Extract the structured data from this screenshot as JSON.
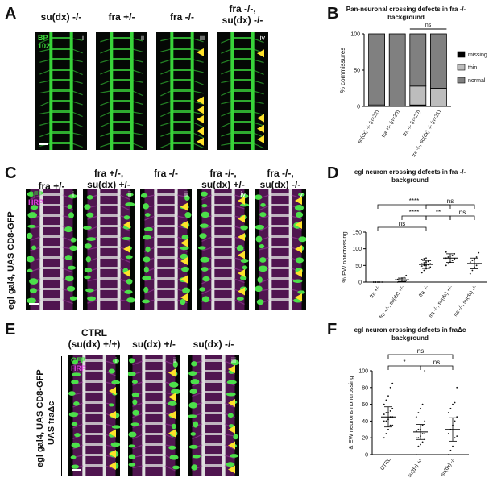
{
  "panels": {
    "A": {
      "label": "A",
      "columns": [
        "su(dx) -/-",
        "fra +/-",
        "fra -/-",
        "fra -/-,\nsu(dx) -/-"
      ],
      "romans": [
        "i",
        "ii",
        "iii",
        "iv"
      ],
      "stain": [
        "BP",
        "102"
      ]
    },
    "B": {
      "label": "B"
    },
    "C": {
      "label": "C",
      "columns": [
        "fra +/-",
        "fra +/-,\nsu(dx) +/-",
        "fra -/-",
        "fra -/-,\nsu(dx) +/-",
        "fra -/-,\nsu(dx) -/-"
      ],
      "romans": [
        "i",
        "ii",
        "iii",
        "iv",
        "v"
      ],
      "stain": [
        "GFP",
        "HRP"
      ],
      "side_label": "egl gal4, UAS CD8-GFP"
    },
    "D": {
      "label": "D"
    },
    "E": {
      "label": "E",
      "columns": [
        "CTRL\n(su(dx) +/+)",
        "su(dx) +/-",
        "su(dx) -/-"
      ],
      "romans": [
        "i",
        "ii",
        "iii"
      ],
      "stain": [
        "GFP",
        "HRP"
      ],
      "side_label_1": "egl gal4, UAS CD8-GFP",
      "side_label_2": "UAS fraΔc"
    },
    "F": {
      "label": "F"
    }
  },
  "chart_data": [
    {
      "id": "B",
      "type": "bar",
      "title": "Pan-neuronal crossing defects in fra -/- background",
      "ylabel": "% commissures",
      "ylim": [
        0,
        100
      ],
      "yticks": [
        0,
        50,
        100
      ],
      "categories": [
        "su(dx) -/- (n=22)",
        "fra +/- (n=20)",
        "fra -/- (n=20)",
        "fra -/-, su(dx) -/- (n=21)"
      ],
      "stacked": true,
      "series": [
        {
          "name": "missing",
          "color": "#000000",
          "values": [
            0,
            0,
            2,
            0
          ]
        },
        {
          "name": "thin",
          "color": "#bdbdbd",
          "values": [
            2,
            0,
            26,
            25
          ]
        },
        {
          "name": "normal",
          "color": "#808080",
          "values": [
            98,
            100,
            72,
            75
          ]
        }
      ],
      "significance": [
        {
          "from": 2,
          "to": 3,
          "label": "ns"
        }
      ],
      "legend_position": "right"
    },
    {
      "id": "D",
      "type": "scatter",
      "title": "egl neuron crossing defects in fra -/- background",
      "ylabel": "% EW noncrossing",
      "ylim": [
        0,
        150
      ],
      "yticks": [
        0,
        50,
        100,
        150
      ],
      "categories": [
        "fra +/-",
        "fra +/-, su(dx) +/-",
        "fra -/-",
        "fra -/-, su(dx) +/-",
        "fra -/-, su(dx) -/-"
      ],
      "mean": [
        0,
        7,
        53,
        72,
        56
      ],
      "sd": [
        0,
        5,
        12,
        13,
        16
      ],
      "points": [
        [
          0,
          0,
          0,
          0,
          0,
          0,
          0,
          0
        ],
        [
          0,
          0,
          2,
          4,
          5,
          8,
          10,
          12,
          14,
          20
        ],
        [
          28,
          35,
          40,
          42,
          45,
          48,
          50,
          50,
          52,
          55,
          55,
          58,
          60,
          62,
          65,
          68,
          70,
          72
        ],
        [
          50,
          55,
          60,
          65,
          70,
          72,
          75,
          78,
          80,
          85,
          90
        ],
        [
          25,
          35,
          45,
          50,
          55,
          60,
          65,
          70,
          75,
          88
        ]
      ],
      "significance": [
        {
          "from": 0,
          "to": 2,
          "label": "ns",
          "level": 0
        },
        {
          "from": 0,
          "to": 3,
          "label": "****",
          "level": 2
        },
        {
          "from": 1,
          "to": 2,
          "label": "****",
          "level": 1
        },
        {
          "from": 2,
          "to": 3,
          "label": "**",
          "level": 1
        },
        {
          "from": 2,
          "to": 4,
          "label": "ns",
          "level": 2
        },
        {
          "from": 3,
          "to": 4,
          "label": "ns",
          "level": 1
        }
      ]
    },
    {
      "id": "F",
      "type": "scatter",
      "title": "egl neuron crossing defects in fraΔc background",
      "ylabel": "& EW neurons noncrossing",
      "ylim": [
        0,
        100
      ],
      "yticks": [
        0,
        20,
        40,
        60,
        80,
        100
      ],
      "categories": [
        "CTRL",
        "su(dx) +/-",
        "su(dx) -/-"
      ],
      "mean": [
        45,
        27,
        30
      ],
      "sd": [
        12,
        9,
        14
      ],
      "points": [
        [
          20,
          25,
          30,
          35,
          35,
          40,
          40,
          42,
          45,
          45,
          48,
          50,
          50,
          52,
          55,
          60,
          65,
          70,
          80,
          85
        ],
        [
          0,
          10,
          12,
          15,
          18,
          20,
          20,
          22,
          25,
          25,
          28,
          30,
          30,
          35,
          40,
          45,
          50,
          55,
          60,
          100
        ],
        [
          0,
          5,
          10,
          20,
          22,
          25,
          30,
          35,
          40,
          45,
          50,
          55,
          60,
          62,
          80
        ]
      ],
      "significance": [
        {
          "from": 0,
          "to": 1,
          "label": "*",
          "level": 0
        },
        {
          "from": 1,
          "to": 2,
          "label": "ns",
          "level": 0
        },
        {
          "from": 0,
          "to": 2,
          "label": "ns",
          "level": 1
        }
      ]
    }
  ]
}
